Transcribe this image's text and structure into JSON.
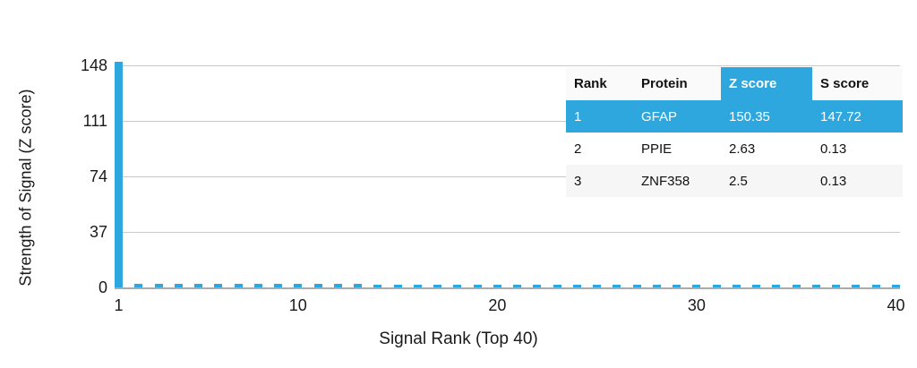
{
  "chart": {
    "y_title": "Strength of Signal (Z score)",
    "x_title": "Signal Rank (Top 40)",
    "y_ticks": [
      148,
      111,
      74,
      37,
      0
    ],
    "x_ticks": [
      1,
      10,
      20,
      30,
      40
    ],
    "colors": {
      "bar": "#2EA7DE",
      "grid": "#c9c9c9",
      "axis": "#ababab",
      "text": "#1a1a1a",
      "table_highlight": "#2EA7DE"
    }
  },
  "chart_data": {
    "type": "bar",
    "title": "",
    "xlabel": "Signal Rank (Top 40)",
    "ylabel": "Strength of Signal (Z score)",
    "ylim": [
      0,
      148
    ],
    "grid": true,
    "x": [
      1,
      2,
      3,
      4,
      5,
      6,
      7,
      8,
      9,
      10,
      11,
      12,
      13,
      14,
      15,
      16,
      17,
      18,
      19,
      20,
      21,
      22,
      23,
      24,
      25,
      26,
      27,
      28,
      29,
      30,
      31,
      32,
      33,
      34,
      35,
      36,
      37,
      38,
      39,
      40
    ],
    "values": [
      150.35,
      2.63,
      2.5,
      2.45,
      2.4,
      2.36,
      2.32,
      2.28,
      2.24,
      2.2,
      2.17,
      2.14,
      2.11,
      2.08,
      2.05,
      2.02,
      2.0,
      1.98,
      1.96,
      1.94,
      1.92,
      1.9,
      1.88,
      1.86,
      1.84,
      1.82,
      1.8,
      1.79,
      1.78,
      1.77,
      1.76,
      1.75,
      1.74,
      1.73,
      1.72,
      1.71,
      1.7,
      1.69,
      1.68,
      1.67
    ]
  },
  "table": {
    "headers": [
      "Rank",
      "Protein",
      "Z score",
      "S score"
    ],
    "rows": [
      {
        "rank": "1",
        "protein": "GFAP",
        "z": "150.35",
        "s": "147.72"
      },
      {
        "rank": "2",
        "protein": "PPIE",
        "z": "2.63",
        "s": "0.13"
      },
      {
        "rank": "3",
        "protein": "ZNF358",
        "z": "2.5",
        "s": "0.13"
      }
    ]
  }
}
